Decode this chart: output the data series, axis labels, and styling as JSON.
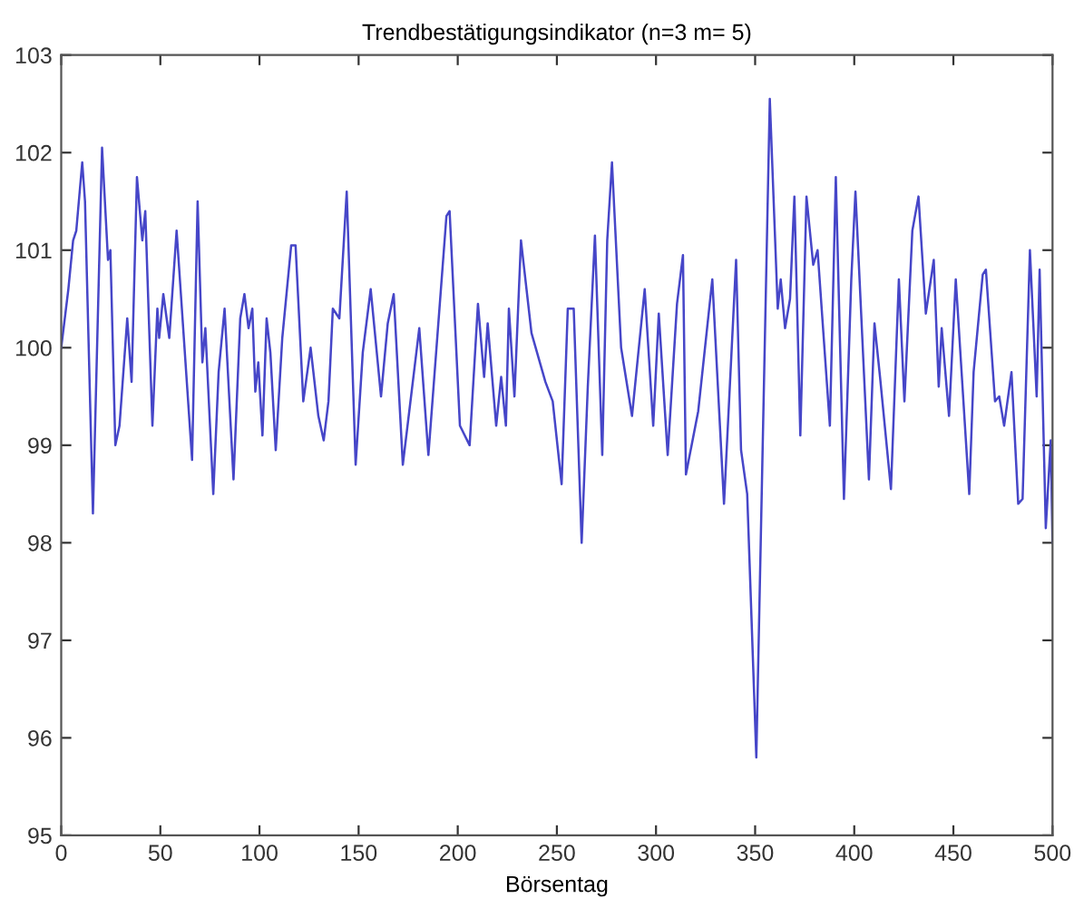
{
  "chart_data": {
    "type": "line",
    "title": "Trendbestätigungsindikator (n=3 m= 5)",
    "xlabel": "Börsentag",
    "xlim": [
      0,
      500
    ],
    "xticks": [
      0,
      50,
      100,
      150,
      200,
      250,
      300,
      350,
      400,
      450,
      500
    ],
    "ylim": [
      95,
      103
    ],
    "yticks": [
      95,
      96,
      97,
      98,
      99,
      100,
      101,
      102,
      103
    ],
    "grid": false,
    "legend": false,
    "marker": "none",
    "line_style": "solid",
    "series": [
      {
        "color": "#4646c8",
        "x": [
          0,
          3.6,
          6,
          7.6,
          10.6,
          12,
          16,
          20.6,
          23.6,
          24.8,
          27.3,
          29.4,
          33.3,
          35.5,
          38.2,
          40.9,
          42.4,
          46,
          48.5,
          49.4,
          51.5,
          54.5,
          58.2,
          66,
          68.8,
          71.2,
          72.7,
          76.7,
          79.4,
          82.4,
          86.9,
          90.3,
          92.4,
          94.5,
          96.4,
          97.9,
          99.4,
          101.5,
          103.6,
          105.5,
          108.2,
          111.5,
          116,
          118.2,
          122.1,
          125.8,
          129.7,
          132.4,
          134.8,
          137,
          140.3,
          144,
          148.5,
          152.1,
          156.1,
          161.3,
          164.7,
          167.7,
          172.3,
          180.6,
          185.2,
          194.3,
          195.9,
          201.1,
          206,
          210.2,
          213.3,
          215.1,
          219.4,
          221.9,
          224.3,
          225.8,
          228.6,
          231.9,
          237.2,
          244.2,
          247.9,
          252.4,
          255.5,
          258.5,
          262.5,
          265.6,
          269.2,
          272.9,
          275.4,
          277.8,
          282.4,
          287.9,
          294.3,
          298.6,
          301.4,
          305.9,
          310.6,
          313.6,
          315.1,
          321.3,
          328.4,
          334.3,
          340.4,
          342.9,
          346,
          350.6,
          357.4,
          361.4,
          362.9,
          365.1,
          367.6,
          369.8,
          372.8,
          375.9,
          379.3,
          381.5,
          387.7,
          390.7,
          394.8,
          398.5,
          400.6,
          407.4,
          410.2,
          413,
          418.5,
          422.5,
          425.3,
          429.3,
          432.4,
          436.1,
          440.1,
          442.6,
          444.1,
          447.8,
          451.2,
          458,
          460.2,
          464.8,
          466.4,
          471,
          473.1,
          475.6,
          479.3,
          482.7,
          484.9,
          488.6,
          492,
          493.5,
          496.6,
          499.1,
          500
        ],
        "values": [
          100.0,
          100.6,
          101.1,
          101.2,
          101.9,
          101.5,
          98.3,
          102.05,
          100.9,
          101.0,
          99.0,
          99.2,
          100.3,
          99.65,
          101.75,
          101.1,
          101.4,
          99.2,
          100.4,
          100.1,
          100.55,
          100.1,
          101.2,
          98.85,
          101.5,
          99.85,
          100.2,
          98.5,
          99.75,
          100.4,
          98.65,
          100.3,
          100.55,
          100.2,
          100.4,
          99.55,
          99.85,
          99.1,
          100.3,
          99.95,
          98.95,
          100.1,
          101.05,
          101.05,
          99.45,
          100.0,
          99.3,
          99.05,
          99.45,
          100.4,
          100.3,
          101.6,
          98.8,
          99.95,
          100.6,
          99.5,
          100.25,
          100.55,
          98.8,
          100.2,
          98.9,
          101.35,
          101.4,
          99.2,
          99.0,
          100.45,
          99.7,
          100.25,
          99.2,
          99.7,
          99.2,
          100.4,
          99.5,
          101.1,
          100.15,
          99.65,
          99.45,
          98.6,
          100.4,
          100.4,
          98.0,
          99.6,
          101.15,
          98.9,
          101.1,
          101.9,
          100.0,
          99.3,
          100.6,
          99.2,
          100.35,
          98.9,
          100.45,
          100.95,
          98.7,
          99.35,
          100.7,
          98.4,
          100.9,
          98.95,
          98.5,
          95.8,
          102.55,
          100.4,
          100.7,
          100.2,
          100.5,
          101.55,
          99.1,
          101.55,
          100.85,
          101.0,
          99.2,
          101.75,
          98.45,
          100.7,
          101.6,
          98.65,
          100.25,
          99.7,
          98.55,
          100.7,
          99.45,
          101.2,
          101.55,
          100.35,
          100.9,
          99.6,
          100.2,
          99.3,
          100.7,
          98.5,
          99.75,
          100.75,
          100.8,
          99.45,
          99.5,
          99.2,
          99.75,
          98.4,
          98.45,
          101.0,
          99.5,
          100.8,
          98.15,
          99.05,
          98.0
        ]
      }
    ]
  }
}
